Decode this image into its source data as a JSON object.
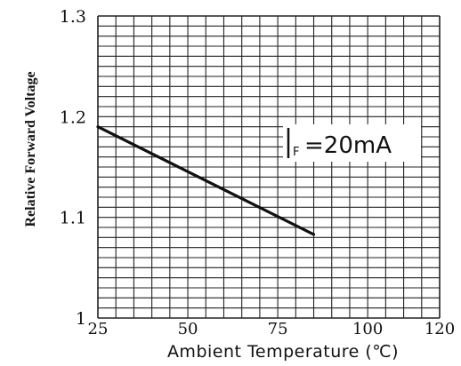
{
  "chart_data": {
    "type": "line",
    "title": "",
    "xlabel": "Ambient Temperature (℃)",
    "ylabel": "Relative Forward Voltage",
    "xlim": [
      25,
      120
    ],
    "ylim": [
      1.0,
      1.3
    ],
    "x_ticks": [
      {
        "value": 25,
        "label": "25"
      },
      {
        "value": 50,
        "label": "50"
      },
      {
        "value": 75,
        "label": "75"
      },
      {
        "value": 100,
        "label": "100"
      },
      {
        "value": 120,
        "label": "120"
      }
    ],
    "y_ticks": [
      {
        "value": 1.0,
        "label": "1"
      },
      {
        "value": 1.1,
        "label": "1.1"
      },
      {
        "value": 1.2,
        "label": "1.2"
      },
      {
        "value": 1.3,
        "label": "1.3"
      }
    ],
    "grid": true,
    "series": [
      {
        "name": "",
        "x": [
          25,
          85
        ],
        "y": [
          1.19,
          1.083
        ]
      }
    ],
    "annotations": [
      {
        "symbol": "I",
        "subscript": "F",
        "text": "=20mA"
      }
    ]
  },
  "colors": {
    "grid": "#222222",
    "line": "#111111",
    "text": "#111111"
  }
}
